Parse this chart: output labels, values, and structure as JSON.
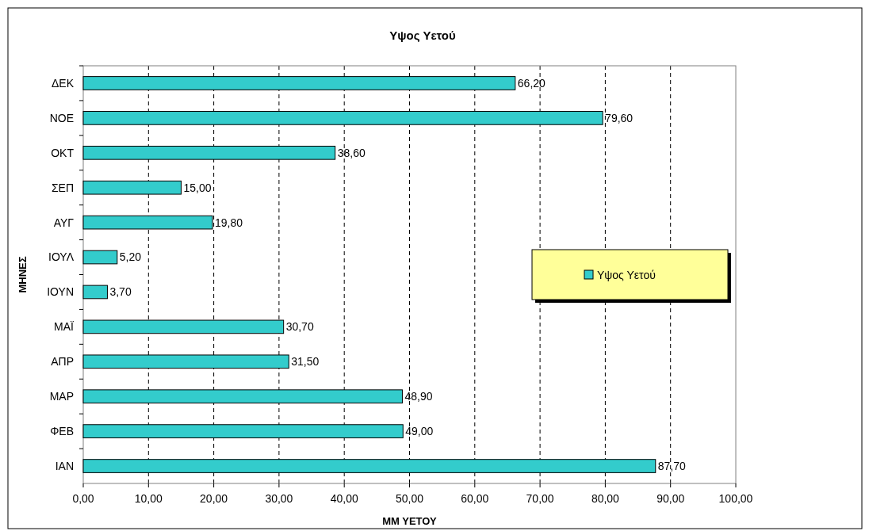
{
  "chart_data": {
    "type": "bar",
    "orientation": "horizontal",
    "title": "Υψος Υετού",
    "xlabel": "ΜΜ ΥΕΤΟΥ",
    "ylabel": "ΜΗΝΕΣ",
    "categories": [
      "ΔΕΚ",
      "ΝΟΕ",
      "ΟΚΤ",
      "ΣΕΠ",
      "ΑΥΓ",
      "ΙΟΥΛ",
      "ΙΟΥΝ",
      "ΜΑΪ",
      "ΑΠΡ",
      "ΜΑΡ",
      "ΦΕΒ",
      "ΙΑΝ"
    ],
    "series": [
      {
        "name": "Υψος Υετού",
        "color": "#33cccc",
        "values": [
          66.2,
          79.6,
          38.6,
          15,
          19.8,
          5.2,
          3.7,
          30.7,
          31.5,
          48.9,
          49,
          87.7
        ],
        "value_labels": [
          "66,20",
          "79,60",
          "38,60",
          "15,00",
          "19,80",
          "5,20",
          "3,70",
          "30,70",
          "31,50",
          "48,90",
          "49,00",
          "87,70"
        ]
      }
    ],
    "xlim": [
      0,
      100
    ],
    "xticks": [
      {
        "value": 0,
        "label": "0,00"
      },
      {
        "value": 10,
        "label": "10,00"
      },
      {
        "value": 20,
        "label": "20,00"
      },
      {
        "value": 30,
        "label": "30,00"
      },
      {
        "value": 40,
        "label": "40,00"
      },
      {
        "value": 50,
        "label": "50,00"
      },
      {
        "value": 60,
        "label": "60,00"
      },
      {
        "value": 70,
        "label": "70,00"
      },
      {
        "value": 80,
        "label": "80,00"
      },
      {
        "value": 90,
        "label": "90,00"
      },
      {
        "value": 100,
        "label": "100,00"
      }
    ],
    "grid": "x",
    "line_style": "dashed",
    "legend": "right"
  }
}
